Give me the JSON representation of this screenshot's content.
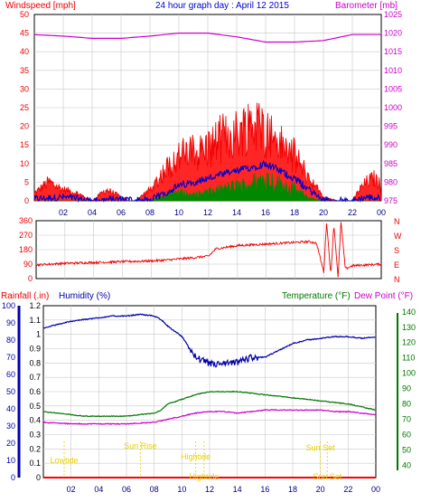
{
  "title": "24 hour graph day : April 12 2015",
  "colors": {
    "wind": "#ee0000",
    "gust_fill": "#ff0000",
    "avg": "#0000cc",
    "green": "#008800",
    "baro": "#cc00cc",
    "humidity": "#0000aa",
    "temperature": "#007700",
    "dewpoint": "#cc00cc",
    "rain": "#ff0000",
    "event": "#e8d000",
    "grid": "#c8c8c8"
  },
  "chart_data": [
    {
      "type": "line",
      "title": "24 hour graph day : April 12 2015",
      "left_axis_label": "Windspeed [mph]",
      "right_axis_label": "Barometer [mb]",
      "x_ticks": [
        "02",
        "04",
        "06",
        "08",
        "10",
        "12",
        "14",
        "16",
        "18",
        "20",
        "22",
        "00"
      ],
      "left_ticks": [
        "50",
        "45",
        "40",
        "35",
        "30",
        "25",
        "20",
        "15",
        "10",
        "5",
        "0"
      ],
      "left_ylim": [
        0,
        50
      ],
      "right_ticks": [
        "1025",
        "1020",
        "1015",
        "1010",
        "1005",
        "1000",
        "995",
        "990",
        "985",
        "980",
        "975"
      ],
      "right_ylim": [
        975,
        1025
      ],
      "grid": true,
      "series": [
        {
          "name": "Windspeed [mph]",
          "x": [
            0,
            1,
            1.5,
            2,
            3,
            4,
            5,
            6,
            6.5,
            7,
            8,
            9,
            10,
            11,
            12,
            13,
            14,
            15,
            15.5,
            16,
            16.5,
            17,
            18,
            19,
            20,
            21,
            22,
            22.5,
            23,
            23.5,
            24
          ],
          "values": [
            2,
            5,
            4,
            3,
            2,
            0,
            3,
            1,
            0,
            0,
            3,
            8,
            12,
            13,
            14,
            17,
            18,
            21,
            20,
            19,
            17,
            15,
            12,
            6,
            1,
            0,
            0,
            3,
            5,
            6,
            4
          ]
        },
        {
          "name": "Average wind",
          "x": [
            0,
            2,
            4,
            6,
            8,
            9,
            10,
            11,
            12,
            13,
            14,
            15,
            16,
            17,
            18,
            19,
            20,
            22,
            23,
            24
          ],
          "values": [
            0.5,
            1,
            0,
            0.5,
            0,
            2,
            4,
            5,
            6,
            7,
            8,
            9,
            10,
            8,
            6,
            3,
            0,
            0,
            1,
            0.5
          ]
        },
        {
          "name": "Wind minimum",
          "x": [
            0,
            8,
            9,
            10,
            11,
            12,
            13,
            14,
            15,
            16,
            17,
            18,
            19,
            20,
            24
          ],
          "values": [
            0,
            0,
            2,
            3,
            2,
            3,
            4,
            5,
            6,
            8,
            6,
            4,
            1,
            0,
            0
          ]
        },
        {
          "name": "Barometer [mb]",
          "x": [
            0,
            2,
            4,
            6,
            8,
            10,
            12,
            14,
            16,
            18,
            20,
            22,
            24
          ],
          "values": [
            1019.6,
            1019.2,
            1018.6,
            1018.6,
            1019.2,
            1020.0,
            1020.0,
            1019.0,
            1017.6,
            1017.6,
            1018.0,
            1019.6,
            1019.6
          ]
        }
      ]
    },
    {
      "type": "line",
      "title": "",
      "left_ticks": [
        "360",
        "270",
        "180",
        "90",
        "0"
      ],
      "left_ylim": [
        0,
        360
      ],
      "right_ticks": [
        "N",
        "W",
        "S",
        "E",
        "N"
      ],
      "grid": true,
      "series": [
        {
          "name": "Wind direction",
          "x": [
            0,
            2,
            4,
            6,
            8,
            9,
            11,
            12,
            12.5,
            14,
            16,
            18,
            19,
            19.5,
            20,
            20.2,
            20.5,
            20.7,
            21,
            21.2,
            21.5,
            22,
            24
          ],
          "values": [
            85,
            95,
            100,
            105,
            110,
            115,
            130,
            140,
            185,
            205,
            215,
            225,
            230,
            220,
            40,
            350,
            20,
            340,
            10,
            355,
            60,
            80,
            90
          ]
        }
      ]
    },
    {
      "type": "line",
      "title": "",
      "left_axis_label_1": "Rainfall (.in)",
      "left_axis_label_2": "Humidity (%)",
      "right_axis_label_1": "Temperature (°F)",
      "right_axis_label_2": "Dew Point (°F)",
      "x_ticks": [
        "02",
        "04",
        "06",
        "08",
        "10",
        "12",
        "14",
        "16",
        "18",
        "20",
        "22",
        "00"
      ],
      "rain_ticks": [
        "1.2",
        "1.1",
        "1",
        "0.9",
        "0.8",
        "0.7",
        "0.6",
        "0.5",
        "0.4",
        "0.3",
        "0.2",
        "0.1",
        "0"
      ],
      "rain_ylim": [
        0,
        1.2
      ],
      "humidity_ticks": [
        "100",
        "90",
        "80",
        "70",
        "60",
        "50",
        "40",
        "30",
        "20",
        "10",
        "0"
      ],
      "humidity_ylim": [
        0,
        100
      ],
      "temp_ticks": [
        "140",
        "130",
        "120",
        "110",
        "100",
        "90",
        "80",
        "70",
        "60",
        "50",
        "40"
      ],
      "temp_ylim": [
        32,
        144
      ],
      "grid": true,
      "series": [
        {
          "name": "Humidity",
          "x": [
            0,
            1,
            2,
            3,
            4,
            5,
            6,
            7,
            8,
            8.5,
            9,
            10,
            11,
            12,
            13,
            14,
            15,
            16,
            17,
            18,
            19,
            20,
            21,
            22,
            23,
            24
          ],
          "values": [
            87,
            89,
            91,
            92,
            93,
            94,
            94,
            95,
            94,
            92,
            88,
            82,
            70,
            66,
            66,
            67,
            70,
            70,
            74,
            78,
            80,
            81,
            82,
            82,
            81,
            82
          ]
        },
        {
          "name": "Temperature",
          "x": [
            0,
            1,
            2,
            3,
            4,
            5,
            6,
            7,
            8,
            8.5,
            9,
            10,
            11,
            12,
            13,
            14,
            15,
            16,
            17,
            18,
            19,
            20,
            21,
            22,
            23,
            24
          ],
          "values": [
            75,
            74,
            73,
            72,
            72,
            72,
            72,
            73,
            74,
            76,
            80,
            83,
            86,
            88,
            88,
            88,
            87,
            86,
            85,
            84,
            83,
            82,
            81,
            80,
            78,
            76
          ]
        },
        {
          "name": "Dew Point",
          "x": [
            0,
            2,
            4,
            6,
            8,
            9,
            10,
            11,
            12,
            13,
            14,
            15,
            16,
            17,
            18,
            19,
            20,
            21,
            22,
            23,
            24
          ],
          "values": [
            68,
            67,
            67,
            67,
            68,
            70,
            72,
            74,
            75,
            75,
            74,
            75,
            76,
            76,
            76,
            76,
            76,
            75,
            75,
            74,
            73
          ]
        },
        {
          "name": "Rainfall",
          "x": [
            0,
            24
          ],
          "values": [
            0,
            0
          ]
        }
      ],
      "annotations": [
        "Lowtide",
        "Sun Rise",
        "Hightide",
        "Hightide",
        "Sun Set",
        "Sun Set"
      ]
    }
  ]
}
